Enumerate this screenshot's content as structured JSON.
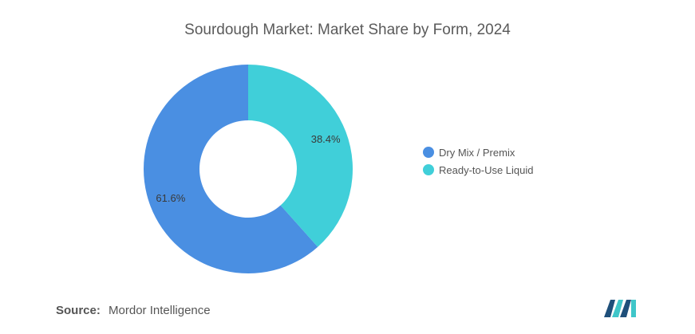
{
  "chart_data": {
    "type": "pie",
    "title": "Sourdough Market: Market Share by Form, 2024",
    "donut": true,
    "categories": [
      "Dry Mix / Premix",
      "Ready-to-Use Liquid"
    ],
    "values": [
      61.6,
      38.4
    ],
    "labels": [
      "61.6%",
      "38.4%"
    ],
    "colors": [
      "#4a8fe2",
      "#40cfd9"
    ],
    "legend_position": "right"
  },
  "source": {
    "label": "Source:",
    "value": "Mordor Intelligence"
  },
  "colors": {
    "title": "#5a5a5a",
    "text": "#555555",
    "logo_primary": "#1f4f7a",
    "logo_accent": "#3fc6c9"
  },
  "logo": {
    "icon": "mordor-intelligence-logo-icon"
  }
}
